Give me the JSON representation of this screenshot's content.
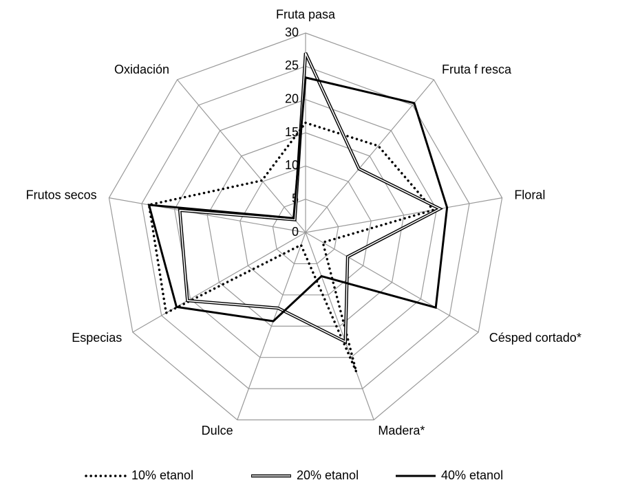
{
  "chart_data": {
    "type": "radar",
    "categories": [
      "Fruta pasa",
      "Fruta f resca",
      "Floral",
      "Césped cortado*",
      "Madera*",
      "Dulce",
      "Especias",
      "Frutos secos",
      "Oxidación"
    ],
    "series": [
      {
        "name": "10% etanol",
        "color": "#000000",
        "style": "dotted",
        "values": [
          16.5,
          17,
          19.5,
          3,
          22.3,
          2,
          24.2,
          23.9,
          10.2
        ]
      },
      {
        "name": "20% etanol",
        "color": "#000000",
        "style": "double",
        "values": [
          27,
          12.5,
          20.5,
          7.3,
          17.5,
          12.1,
          20.5,
          19.2,
          2.5
        ]
      },
      {
        "name": "40% etanol",
        "color": "#000000",
        "style": "solid",
        "values": [
          23.3,
          25.4,
          21.6,
          22.6,
          7,
          14.2,
          22.4,
          23.9,
          2.8
        ]
      }
    ],
    "ylim": [
      0,
      30
    ],
    "yticks": [
      0,
      5,
      10,
      15,
      20,
      25,
      30
    ],
    "grid": true,
    "legend": "bottom"
  }
}
